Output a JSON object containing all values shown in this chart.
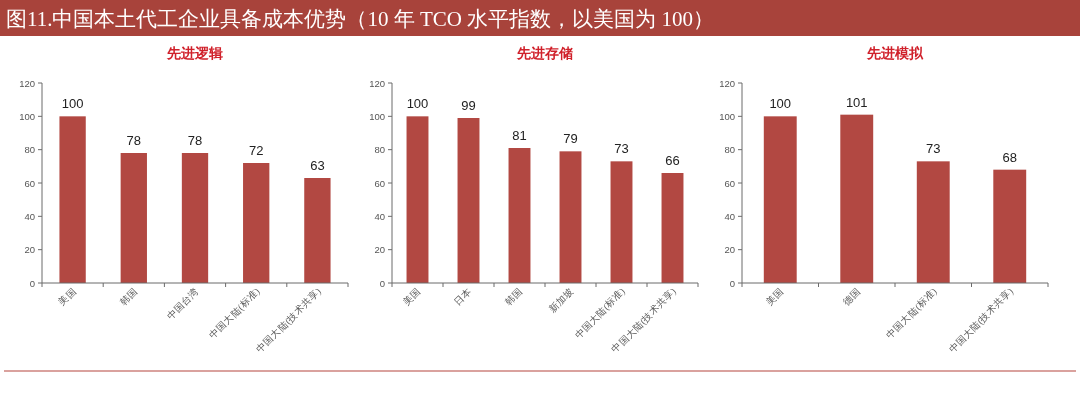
{
  "chart_data": [
    {
      "type": "other",
      "title": "图11.中国本土代工企业具备成本优势（10 年 TCO 水平指数，以美国为 100）"
    },
    {
      "type": "bar",
      "title": "先进逻辑",
      "categories": [
        "美国",
        "韩国",
        "中国台湾",
        "中国大陆(标准)",
        "中国大陆(技术共享)"
      ],
      "values": [
        100,
        78,
        78,
        72,
        63
      ],
      "color": "#b24842",
      "ylim": [
        0,
        120
      ],
      "yticks": [
        0,
        20,
        40,
        60,
        80,
        100,
        120
      ],
      "data_labels": true
    },
    {
      "type": "bar",
      "title": "先进存储",
      "categories": [
        "美国",
        "日本",
        "韩国",
        "新加坡",
        "中国大陆(标准)",
        "中国大陆(技术共享)"
      ],
      "values": [
        100,
        99,
        81,
        79,
        73,
        66
      ],
      "color": "#b24842",
      "ylim": [
        0,
        120
      ],
      "yticks": [
        0,
        20,
        40,
        60,
        80,
        100,
        120
      ],
      "data_labels": true
    },
    {
      "type": "bar",
      "title": "先进模拟",
      "categories": [
        "美国",
        "德国",
        "中国大陆(标准)",
        "中国大陆(技术共享)"
      ],
      "values": [
        100,
        101,
        73,
        68
      ],
      "color": "#b24842",
      "ylim": [
        0,
        120
      ],
      "yticks": [
        0,
        20,
        40,
        60,
        80,
        100,
        120
      ],
      "data_labels": true
    }
  ]
}
